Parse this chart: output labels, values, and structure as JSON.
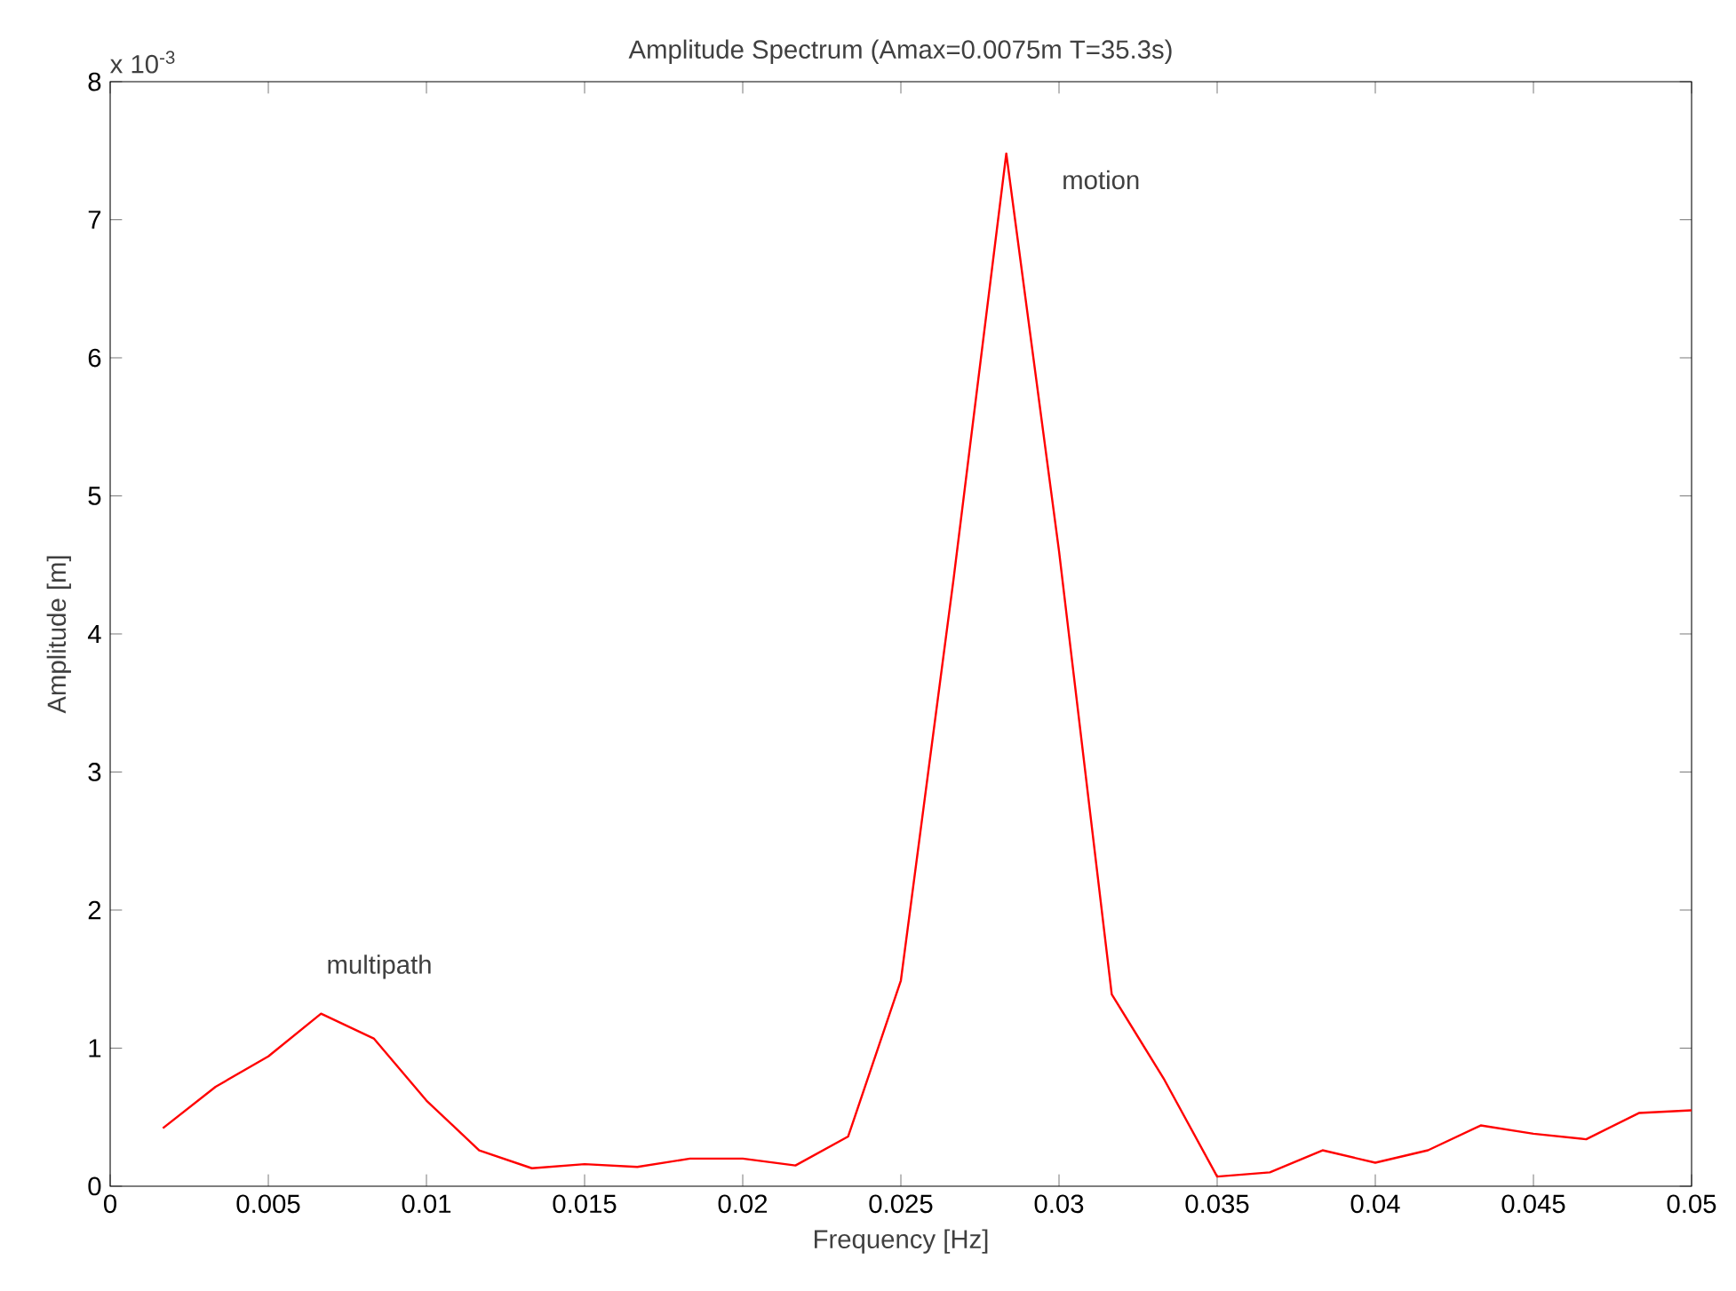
{
  "chart_data": {
    "type": "line",
    "title": "Amplitude Spectrum (Amax=0.0075m T=35.3s)",
    "xlabel": "Frequency [Hz]",
    "ylabel": "Amplitude [m]",
    "x": [
      0.001667,
      0.003333,
      0.005,
      0.006667,
      0.008333,
      0.01,
      0.011667,
      0.013333,
      0.015,
      0.016667,
      0.018333,
      0.02,
      0.021667,
      0.023333,
      0.025,
      0.026667,
      0.028333,
      0.03,
      0.031667,
      0.033333,
      0.035,
      0.036667,
      0.038333,
      0.04,
      0.041667,
      0.043333,
      0.045,
      0.046667,
      0.048333,
      0.05
    ],
    "series": [
      {
        "color": "#ff0000",
        "values": [
          0.42,
          0.72,
          0.94,
          1.25,
          1.07,
          0.62,
          0.26,
          0.13,
          0.16,
          0.14,
          0.2,
          0.2,
          0.15,
          0.36,
          1.49,
          4.4,
          7.48,
          4.6,
          1.39,
          0.77,
          0.07,
          0.1,
          0.26,
          0.17,
          0.26,
          0.44,
          0.38,
          0.34,
          0.53,
          0.55
        ]
      }
    ],
    "xlim": [
      0,
      0.05
    ],
    "xticks": [
      0,
      0.005,
      0.01,
      0.015,
      0.02,
      0.025,
      0.03,
      0.035,
      0.04,
      0.045,
      0.05
    ],
    "ylim": [
      0,
      8
    ],
    "yticks": [
      0,
      1,
      2,
      3,
      4,
      5,
      6,
      7,
      8
    ],
    "annotations": [
      "x 10$^{-3}$",
      "motion",
      "multipath"
    ],
    "grid": false,
    "marker": "none",
    "line_style": "solid"
  }
}
